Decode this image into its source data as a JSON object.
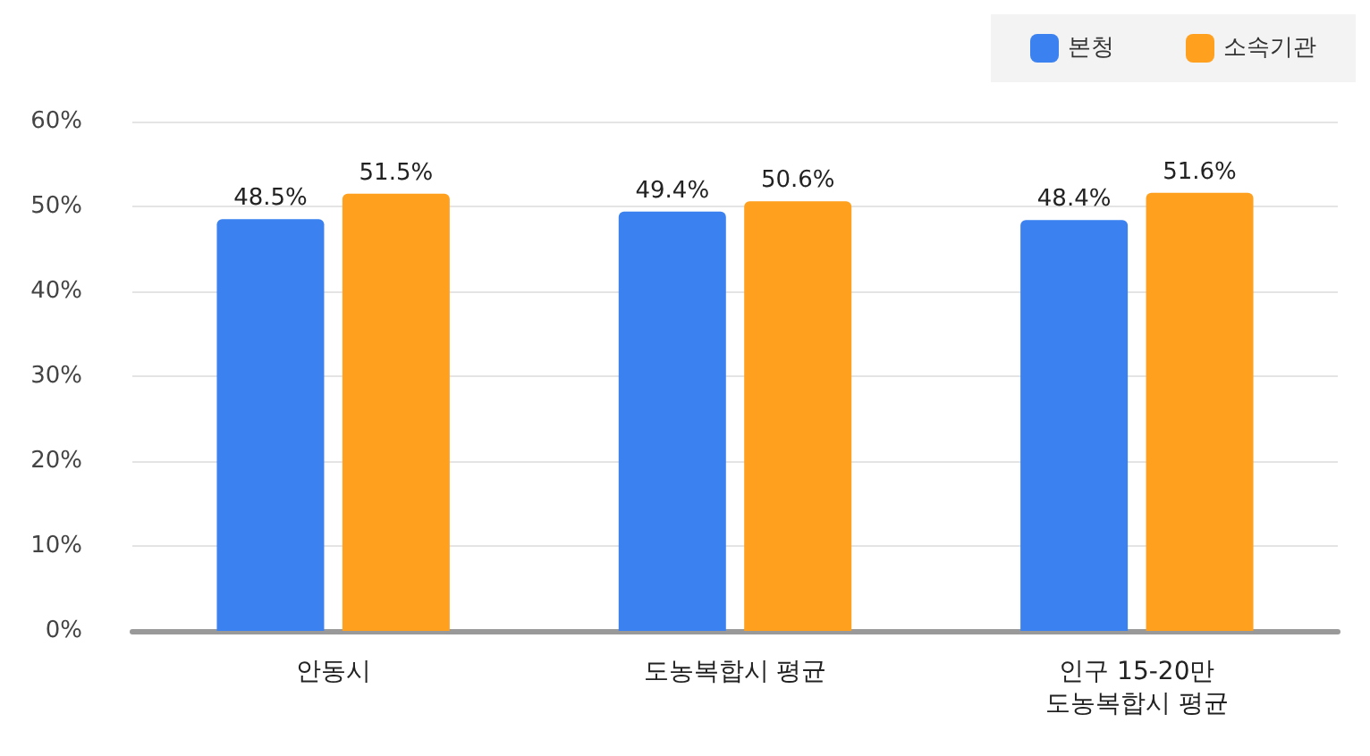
{
  "chart_data": {
    "type": "bar",
    "categories": [
      "안동시",
      "도농복합시 평균",
      "인구 15-20만\n도농복합시 평균"
    ],
    "series": [
      {
        "name": "본청",
        "color": "#3b82f0",
        "values": [
          48.5,
          49.4,
          48.4
        ],
        "value_labels": [
          "48.5%",
          "49.4%",
          "48.4%"
        ]
      },
      {
        "name": "소속기관",
        "color": "#ffa01f",
        "values": [
          51.5,
          50.6,
          51.6
        ],
        "value_labels": [
          "51.5%",
          "50.6%",
          "51.6%"
        ]
      }
    ],
    "ylim": [
      0,
      60
    ],
    "yticks": [
      {
        "value": 0,
        "label": "0%"
      },
      {
        "value": 10,
        "label": "10%"
      },
      {
        "value": 20,
        "label": "20%"
      },
      {
        "value": 30,
        "label": "30%"
      },
      {
        "value": 40,
        "label": "40%"
      },
      {
        "value": 50,
        "label": "50%"
      },
      {
        "value": 60,
        "label": "60%"
      }
    ],
    "grid": "y",
    "legend": "top right"
  }
}
